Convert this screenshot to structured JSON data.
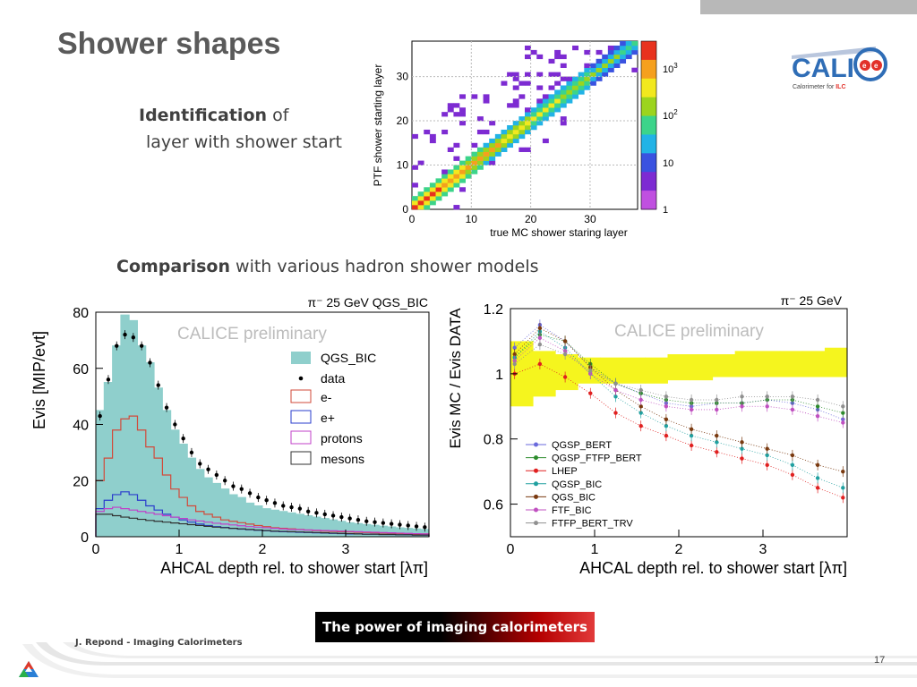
{
  "slide": {
    "title": "Shower shapes",
    "identification": {
      "bold": "Identification",
      "rest1": " of",
      "line2": "layer with shower start"
    },
    "comparison": {
      "bold": "Comparison",
      "rest": " with various hadron shower models"
    },
    "footer": "J. Repond - Imaging Calorimeters",
    "page_number": "17",
    "banner": "The power of imaging calorimeters",
    "logo": {
      "text": "CALI",
      "tagline_pre": "Calorimeter for ",
      "tagline_ilc": "ILC",
      "icon": "calice-ee-icon"
    },
    "corner_logo_icon": "argonne-triangle-icon"
  },
  "chart_data": [
    {
      "type": "heatmap",
      "xlabel": "true MC shower staring layer",
      "ylabel": "PTF shower starting layer",
      "x_ticks": [
        "0",
        "10",
        "20",
        "30"
      ],
      "y_ticks": [
        "0",
        "10",
        "20",
        "30"
      ],
      "xlim": [
        0,
        38
      ],
      "ylim": [
        0,
        38
      ],
      "colorbar": {
        "scale": "log",
        "ticks": [
          "1",
          "10",
          "10",
          "10"
        ],
        "tick_exps": [
          "",
          "",
          "2",
          "3"
        ],
        "range": [
          1,
          3000
        ]
      },
      "colors": {
        "diagonal_high": "#e8321e",
        "diagonal_mid": "#9cd41e",
        "off_diagonal": "#7d2bd2"
      }
    },
    {
      "type": "bar",
      "title": "π⁻ 25 GeV QGS_BIC",
      "watermark": "CALICE preliminary",
      "xlabel": "AHCAL depth rel. to shower start [λπ]",
      "ylabel": "Evis [MIP/evt]",
      "xlim": [
        0,
        4
      ],
      "ylim": [
        0,
        80
      ],
      "x_ticks": [
        "0",
        "1",
        "2",
        "3"
      ],
      "y_ticks": [
        "0",
        "20",
        "40",
        "60",
        "80"
      ],
      "legend": [
        "QGS_BIC",
        "data",
        "e-",
        "e+",
        "protons",
        "mesons"
      ],
      "colors": {
        "total": "#8fcfcc",
        "e_minus": "#d24a3a",
        "e_plus": "#2a3ccc",
        "protons": "#c040c8",
        "mesons": "#303030"
      },
      "x": [
        0.05,
        0.15,
        0.25,
        0.35,
        0.45,
        0.55,
        0.65,
        0.75,
        0.85,
        0.95,
        1.05,
        1.15,
        1.25,
        1.35,
        1.45,
        1.55,
        1.65,
        1.75,
        1.85,
        1.95,
        2.05,
        2.15,
        2.25,
        2.35,
        2.45,
        2.55,
        2.65,
        2.75,
        2.85,
        2.95,
        3.05,
        3.15,
        3.25,
        3.35,
        3.45,
        3.55,
        3.65,
        3.75,
        3.85,
        3.95
      ],
      "series": [
        {
          "name": "QGS_BIC",
          "values": [
            45,
            55,
            68,
            79,
            77,
            68,
            62,
            53,
            45,
            38,
            33,
            28,
            24,
            21,
            19,
            17,
            15,
            14,
            12,
            11,
            10,
            9.5,
            9,
            8.5,
            8,
            7.5,
            7,
            6.5,
            6,
            5.5,
            5,
            4.7,
            4.4,
            4.1,
            3.8,
            3.5,
            3.2,
            3,
            2.8,
            2.6
          ]
        },
        {
          "name": "data",
          "values": [
            43,
            56,
            68,
            72,
            71,
            68,
            62,
            54,
            46,
            40,
            35,
            30,
            26,
            24,
            22,
            20,
            18,
            17,
            15.5,
            14,
            13,
            12,
            11,
            10.5,
            10,
            9,
            8.5,
            8,
            7.5,
            7,
            6.5,
            6,
            5.5,
            5.2,
            4.9,
            4.6,
            4.3,
            4,
            3.7,
            3.4
          ]
        },
        {
          "name": "e-",
          "values": [
            20,
            28,
            38,
            42,
            43,
            38,
            32,
            28,
            22,
            17,
            14,
            11,
            9,
            8,
            7,
            6,
            5.5,
            5,
            4.5,
            4,
            3.6,
            3.2,
            3,
            2.8,
            2.6,
            2.4,
            2.2,
            2,
            1.9,
            1.8,
            1.7,
            1.6,
            1.5,
            1.4,
            1.3,
            1.2,
            1.1,
            1,
            1,
            1
          ]
        },
        {
          "name": "e+",
          "values": [
            10,
            13,
            15,
            16,
            15,
            13,
            11,
            9.5,
            8,
            7,
            6,
            5.2,
            4.5,
            4,
            3.6,
            3.3,
            3,
            2.7,
            2.5,
            2.3,
            2.1,
            1.9,
            1.8,
            1.7,
            1.6,
            1.5,
            1.4,
            1.3,
            1.2,
            1.1,
            1,
            1,
            0.9,
            0.9,
            0.8,
            0.8,
            0.7,
            0.7,
            0.6,
            0.6
          ]
        },
        {
          "name": "protons",
          "values": [
            9,
            10,
            10.5,
            10,
            9.5,
            9,
            8.5,
            8,
            7.5,
            7,
            6.5,
            6,
            5.6,
            5.2,
            4.8,
            4.5,
            4.2,
            3.9,
            3.6,
            3.4,
            3.2,
            3,
            2.8,
            2.6,
            2.5,
            2.4,
            2.3,
            2.2,
            2.1,
            2,
            1.9,
            1.8,
            1.7,
            1.6,
            1.5,
            1.4,
            1.3,
            1.2,
            1.1,
            1
          ]
        },
        {
          "name": "mesons",
          "values": [
            8,
            8,
            7.5,
            7,
            6.6,
            6.2,
            5.8,
            5.5,
            5.2,
            4.9,
            4.6,
            4.3,
            4,
            3.7,
            3.4,
            3.2,
            3,
            2.8,
            2.6,
            2.4,
            2.2,
            2,
            1.9,
            1.8,
            1.7,
            1.6,
            1.5,
            1.4,
            1.3,
            1.2,
            1.1,
            1,
            0.9,
            0.9,
            0.8,
            0.8,
            0.7,
            0.7,
            0.6,
            0.6
          ]
        }
      ]
    },
    {
      "type": "scatter",
      "title": "π⁻ 25 GeV",
      "watermark": "CALICE preliminary",
      "xlabel": "AHCAL depth rel. to shower start [λπ]",
      "ylabel": "Evis MC / Evis DATA",
      "xlim": [
        0,
        4
      ],
      "ylim": [
        0.5,
        1.2
      ],
      "x_ticks": [
        "0",
        "1",
        "2",
        "3"
      ],
      "y_ticks": [
        "0.6",
        "0.8",
        "1",
        "1.2"
      ],
      "band": {
        "lower": [
          0.9,
          0.93,
          0.95,
          0.97,
          0.97,
          0.97,
          0.97,
          0.98,
          0.98,
          0.99,
          0.99,
          0.99,
          0.99,
          0.99,
          0.99
        ],
        "upper": [
          1.1,
          1.07,
          1.06,
          1.05,
          1.05,
          1.05,
          1.05,
          1.06,
          1.06,
          1.06,
          1.07,
          1.07,
          1.07,
          1.07,
          1.08
        ],
        "color": "#f5f51e"
      },
      "x": [
        0.05,
        0.35,
        0.65,
        0.95,
        1.25,
        1.55,
        1.85,
        2.15,
        2.45,
        2.75,
        3.05,
        3.35,
        3.65,
        3.95
      ],
      "series": [
        {
          "name": "QGSP_BERT",
          "color": "#6a6adc",
          "values": [
            1.08,
            1.15,
            1.1,
            1.02,
            0.97,
            0.94,
            0.91,
            0.9,
            0.91,
            0.91,
            0.92,
            0.91,
            0.89,
            0.86
          ]
        },
        {
          "name": "QGSP_FTFP_BERT",
          "color": "#2c8c2c",
          "values": [
            1.05,
            1.12,
            1.1,
            1.03,
            0.97,
            0.94,
            0.92,
            0.91,
            0.91,
            0.91,
            0.92,
            0.92,
            0.9,
            0.88
          ]
        },
        {
          "name": "LHEP",
          "color": "#e02020",
          "values": [
            1.0,
            1.03,
            0.99,
            0.94,
            0.88,
            0.84,
            0.81,
            0.78,
            0.76,
            0.74,
            0.72,
            0.69,
            0.65,
            0.62
          ]
        },
        {
          "name": "QGSP_BIC",
          "color": "#20a0a0",
          "values": [
            1.05,
            1.13,
            1.08,
            1.0,
            0.93,
            0.88,
            0.84,
            0.81,
            0.79,
            0.77,
            0.75,
            0.72,
            0.68,
            0.65
          ]
        },
        {
          "name": "QGS_BIC",
          "color": "#7a3a10",
          "values": [
            1.06,
            1.14,
            1.1,
            1.02,
            0.95,
            0.9,
            0.86,
            0.83,
            0.81,
            0.79,
            0.77,
            0.75,
            0.72,
            0.7
          ]
        },
        {
          "name": "FTF_BIC",
          "color": "#c050c0",
          "values": [
            1.04,
            1.11,
            1.07,
            1.0,
            0.95,
            0.92,
            0.9,
            0.89,
            0.89,
            0.9,
            0.9,
            0.89,
            0.87,
            0.85
          ]
        },
        {
          "name": "FTFP_BERT_TRV",
          "color": "#909090",
          "values": [
            1.03,
            1.09,
            1.06,
            1.01,
            0.97,
            0.95,
            0.93,
            0.92,
            0.92,
            0.93,
            0.93,
            0.93,
            0.92,
            0.9
          ]
        }
      ]
    }
  ]
}
